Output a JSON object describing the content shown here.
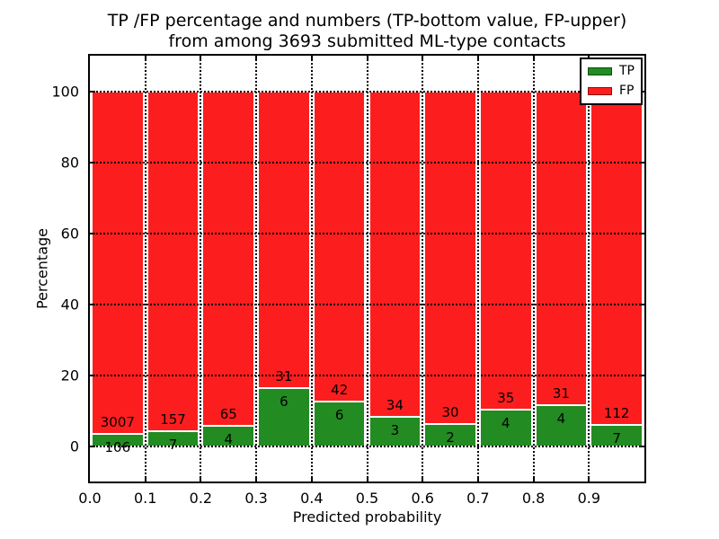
{
  "title": {
    "line1": "TP /FP percentage and numbers (TP-bottom value, FP-upper)",
    "line2": "from among 3693 submitted ML-type contacts"
  },
  "axes": {
    "xlabel": "Predicted probability",
    "ylabel": "Percentage",
    "xlim": [
      0.0,
      1.0
    ],
    "ylim": [
      -10,
      110
    ],
    "yticks": [
      0,
      20,
      40,
      60,
      80,
      100
    ],
    "xtick_labels": [
      "0.0",
      "0.1",
      "0.2",
      "0.3",
      "0.4",
      "0.5",
      "0.6",
      "0.7",
      "0.8",
      "0.9"
    ],
    "grid_style": "dotted",
    "grid_on": true
  },
  "legend": {
    "position": "upper-right",
    "items": [
      {
        "label": "TP",
        "color": "#228b22"
      },
      {
        "label": "FP",
        "color": "#fc1e1e"
      }
    ]
  },
  "chart_data": {
    "type": "bar",
    "stacked": true,
    "normalized_to_percent": true,
    "total_contacts": 3693,
    "bin_left_edges": [
      0.0,
      0.1,
      0.2,
      0.3,
      0.4,
      0.5,
      0.6,
      0.7,
      0.8,
      0.9
    ],
    "bin_width": 0.1,
    "series": [
      {
        "name": "TP",
        "color": "#228b22",
        "counts": [
          106,
          7,
          4,
          6,
          6,
          3,
          2,
          4,
          4,
          7
        ],
        "percent": [
          3.41,
          4.27,
          5.8,
          16.22,
          12.5,
          8.11,
          6.25,
          10.26,
          11.43,
          5.88
        ]
      },
      {
        "name": "FP",
        "color": "#fc1e1e",
        "counts": [
          3007,
          157,
          65,
          31,
          42,
          34,
          30,
          35,
          31,
          112
        ],
        "percent": [
          96.59,
          95.73,
          94.2,
          83.78,
          87.5,
          91.89,
          93.75,
          89.74,
          88.57,
          94.12
        ]
      }
    ]
  }
}
